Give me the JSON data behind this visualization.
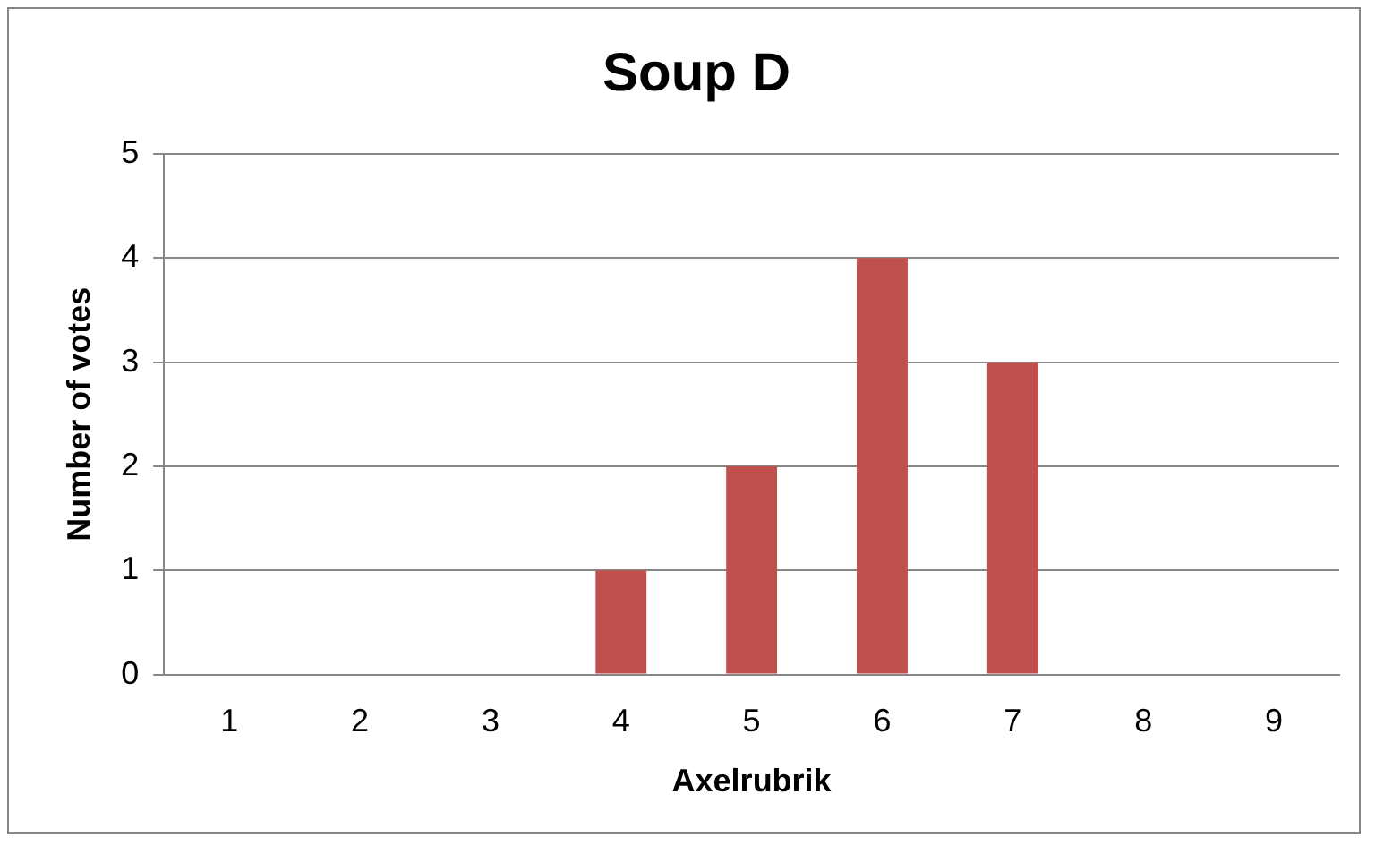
{
  "chart_data": {
    "type": "bar",
    "title": "Soup D",
    "xlabel": "Axelrubrik",
    "ylabel": "Number of votes",
    "categories": [
      "1",
      "2",
      "3",
      "4",
      "5",
      "6",
      "7",
      "8",
      "9"
    ],
    "values": [
      0,
      0,
      0,
      1,
      2,
      4,
      3,
      0,
      0
    ],
    "color": "#c0504d",
    "ylim": [
      0,
      5
    ],
    "yticks": [
      0,
      1,
      2,
      3,
      4,
      5
    ],
    "grid": "y",
    "legend": false
  }
}
